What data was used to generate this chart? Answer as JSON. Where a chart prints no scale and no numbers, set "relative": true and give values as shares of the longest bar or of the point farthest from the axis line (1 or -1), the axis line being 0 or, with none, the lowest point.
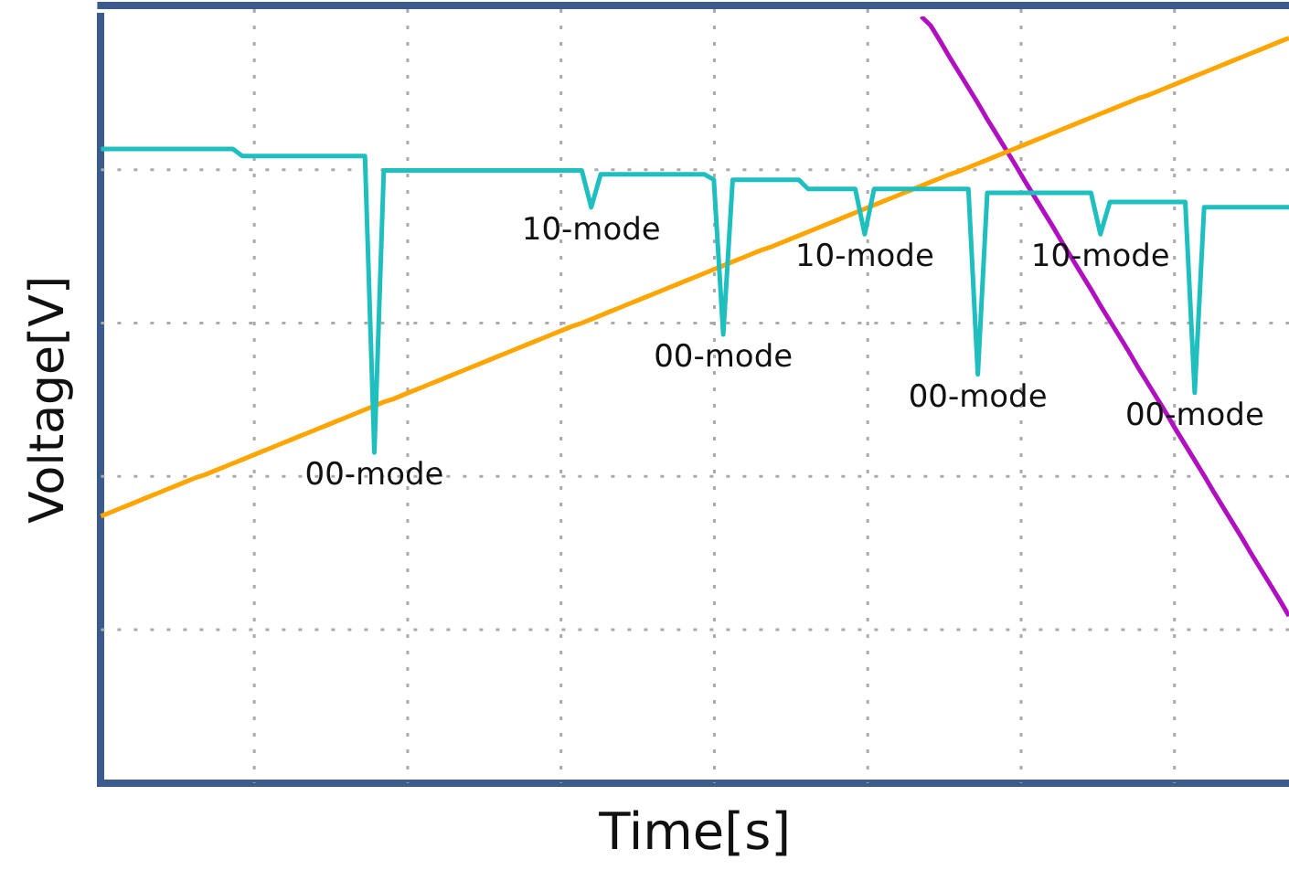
{
  "chart_data": {
    "type": "line",
    "xlabel": "Time[s]",
    "ylabel": "Voltage[V]",
    "relative": true,
    "grid": true,
    "categories": [
      null,
      null,
      null,
      null,
      null,
      null,
      null,
      null,
      null,
      null,
      null,
      null,
      null,
      null,
      null,
      null,
      null,
      null,
      null,
      null,
      null,
      null,
      null,
      null,
      null,
      null,
      null,
      null,
      null,
      null,
      null,
      null,
      null,
      null,
      null,
      null,
      null,
      null,
      null,
      null,
      null,
      null,
      null,
      null,
      null,
      null,
      null,
      null,
      null,
      null,
      null,
      null,
      null,
      null,
      null,
      null,
      null,
      null,
      null,
      null,
      null,
      null,
      null,
      null,
      null,
      null,
      null,
      null,
      null,
      null,
      null,
      null,
      null,
      null,
      null,
      null,
      null,
      null,
      null,
      null,
      null,
      null,
      null,
      null,
      null,
      null,
      null,
      null,
      null,
      null,
      null,
      null,
      null,
      null,
      null,
      null,
      null,
      null,
      null,
      null,
      null,
      null,
      null,
      null,
      null,
      null,
      null,
      null,
      null,
      null,
      null,
      null,
      null,
      null,
      null,
      null,
      null,
      null,
      null,
      null,
      null,
      null,
      null,
      null,
      null,
      null,
      null
    ],
    "series": [
      {
        "color": "#1fbfbf",
        "values": [
          0.827,
          0.827,
          0.827,
          0.827,
          0.827,
          0.827,
          0.827,
          0.827,
          0.827,
          0.827,
          0.827,
          0.827,
          0.827,
          0.827,
          0.827,
          0.818,
          0.818,
          0.818,
          0.818,
          0.818,
          0.818,
          0.818,
          0.818,
          0.818,
          0.818,
          0.818,
          0.818,
          0.818,
          0.818,
          0.431,
          0.799,
          0.799,
          0.799,
          0.799,
          0.799,
          0.799,
          0.799,
          0.799,
          0.799,
          0.799,
          0.799,
          0.799,
          0.799,
          0.799,
          0.799,
          0.799,
          0.799,
          0.799,
          0.799,
          0.799,
          0.799,
          0.799,
          0.751,
          0.794,
          0.794,
          0.794,
          0.794,
          0.794,
          0.794,
          0.794,
          0.794,
          0.794,
          0.794,
          0.794,
          0.794,
          0.787,
          0.585,
          0.787,
          0.787,
          0.787,
          0.787,
          0.787,
          0.787,
          0.787,
          0.787,
          0.775,
          0.775,
          0.775,
          0.775,
          0.775,
          0.775,
          0.716,
          0.775,
          0.775,
          0.775,
          0.775,
          0.775,
          0.775,
          0.775,
          0.775,
          0.775,
          0.775,
          0.775,
          0.533,
          0.77,
          0.77,
          0.77,
          0.77,
          0.77,
          0.77,
          0.77,
          0.77,
          0.77,
          0.77,
          0.77,
          0.77,
          0.716,
          0.758,
          0.758,
          0.758,
          0.758,
          0.758,
          0.758,
          0.758,
          0.758,
          0.758,
          0.509,
          0.751,
          0.751,
          0.751,
          0.751,
          0.751,
          0.751,
          0.751,
          0.751,
          0.751,
          0.751
        ]
      },
      {
        "color": "#ffa500",
        "values": [
          0.348,
          0.353,
          0.358,
          0.363,
          0.368,
          0.373,
          0.378,
          0.383,
          0.388,
          0.393,
          0.398,
          0.402,
          0.407,
          0.412,
          0.417,
          0.422,
          0.427,
          0.432,
          0.437,
          0.442,
          0.447,
          0.452,
          0.457,
          0.462,
          0.467,
          0.472,
          0.477,
          0.482,
          0.487,
          0.492,
          0.497,
          0.501,
          0.506,
          0.511,
          0.516,
          0.521,
          0.526,
          0.531,
          0.536,
          0.541,
          0.546,
          0.551,
          0.556,
          0.561,
          0.566,
          0.571,
          0.576,
          0.581,
          0.586,
          0.591,
          0.596,
          0.6,
          0.605,
          0.61,
          0.615,
          0.62,
          0.625,
          0.63,
          0.635,
          0.64,
          0.645,
          0.65,
          0.655,
          0.66,
          0.665,
          0.67,
          0.675,
          0.68,
          0.685,
          0.69,
          0.695,
          0.699,
          0.704,
          0.709,
          0.714,
          0.719,
          0.724,
          0.729,
          0.734,
          0.739,
          0.744,
          0.749,
          0.754,
          0.759,
          0.764,
          0.769,
          0.774,
          0.779,
          0.784,
          0.789,
          0.794,
          0.798,
          0.803,
          0.808,
          0.813,
          0.818,
          0.823,
          0.828,
          0.833,
          0.838,
          0.843,
          0.848,
          0.853,
          0.858,
          0.863,
          0.868,
          0.873,
          0.878,
          0.883,
          0.888,
          0.893,
          0.897,
          0.902,
          0.907,
          0.912,
          0.917,
          0.922,
          0.927,
          0.932,
          0.937,
          0.942,
          0.947,
          0.952,
          0.957,
          0.962,
          0.967,
          0.972
        ]
      },
      {
        "color": "#b010c0",
        "values": [
          null,
          null,
          null,
          null,
          null,
          null,
          null,
          null,
          null,
          null,
          null,
          null,
          null,
          null,
          null,
          null,
          null,
          null,
          null,
          null,
          null,
          null,
          null,
          null,
          null,
          null,
          null,
          null,
          null,
          null,
          null,
          null,
          null,
          null,
          null,
          null,
          null,
          null,
          null,
          null,
          null,
          null,
          null,
          null,
          null,
          null,
          null,
          null,
          null,
          null,
          null,
          null,
          null,
          null,
          null,
          null,
          null,
          null,
          null,
          null,
          null,
          null,
          null,
          null,
          null,
          null,
          null,
          null,
          null,
          null,
          null,
          null,
          null,
          null,
          null,
          null,
          null,
          null,
          null,
          null,
          null,
          null,
          null,
          null,
          null,
          null,
          null,
          1.0,
          0.988,
          0.968,
          0.947,
          0.927,
          0.907,
          0.887,
          0.866,
          0.846,
          0.826,
          0.806,
          0.785,
          0.765,
          0.745,
          0.725,
          0.704,
          0.684,
          0.664,
          0.644,
          0.623,
          0.603,
          0.583,
          0.563,
          0.542,
          0.522,
          0.502,
          0.482,
          0.461,
          0.441,
          0.421,
          0.401,
          0.38,
          0.36,
          0.34,
          0.32,
          0.299,
          0.279,
          0.259,
          0.239,
          0.218
        ]
      }
    ],
    "annotations": [
      "00-mode",
      "10-mode",
      "00-mode",
      "10-mode",
      "00-mode",
      "10-mode",
      "00-mode"
    ]
  }
}
